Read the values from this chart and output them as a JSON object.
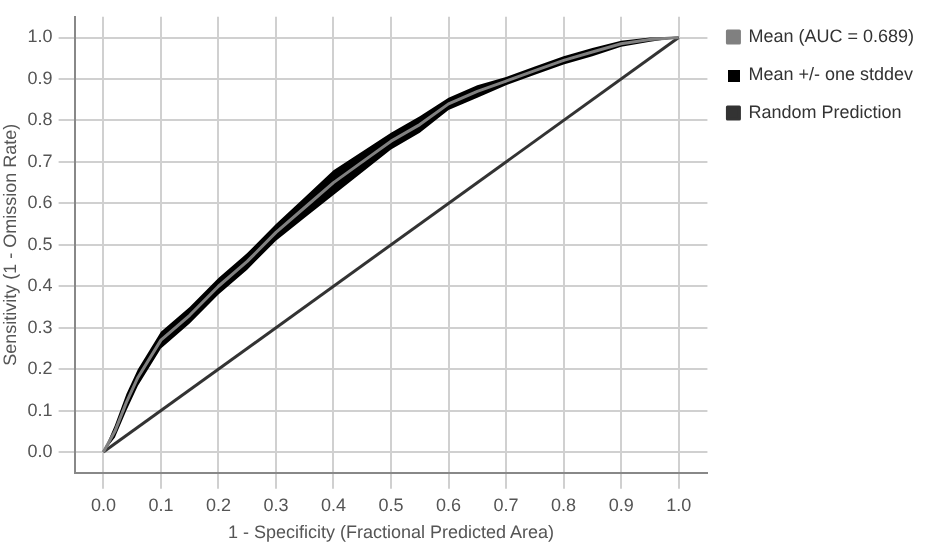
{
  "chart_data": {
    "type": "line",
    "xlabel": "1 - Specificity (Fractional Predicted Area)",
    "ylabel": "Sensitivity (1 - Omission Rate)",
    "x": [
      0,
      0.02,
      0.04,
      0.06,
      0.1,
      0.15,
      0.2,
      0.25,
      0.3,
      0.35,
      0.4,
      0.45,
      0.5,
      0.55,
      0.6,
      0.65,
      0.7,
      0.75,
      0.8,
      0.85,
      0.9,
      0.95,
      1
    ],
    "series": [
      {
        "name": "Mean (AUC = 0.689)",
        "color": "#808080",
        "values": [
          0,
          0.05,
          0.12,
          0.18,
          0.27,
          0.33,
          0.4,
          0.46,
          0.53,
          0.59,
          0.65,
          0.7,
          0.75,
          0.79,
          0.84,
          0.87,
          0.895,
          0.92,
          0.945,
          0.965,
          0.985,
          0.995,
          1
        ],
        "lower": [
          0,
          0.035,
          0.1,
          0.16,
          0.25,
          0.31,
          0.38,
          0.44,
          0.51,
          0.565,
          0.62,
          0.675,
          0.73,
          0.77,
          0.825,
          0.855,
          0.885,
          0.91,
          0.935,
          0.955,
          0.978,
          0.99,
          1
        ],
        "upper": [
          0,
          0.065,
          0.14,
          0.2,
          0.29,
          0.35,
          0.42,
          0.48,
          0.55,
          0.615,
          0.68,
          0.725,
          0.77,
          0.81,
          0.855,
          0.885,
          0.905,
          0.93,
          0.955,
          0.975,
          0.992,
          1,
          1
        ]
      },
      {
        "name": "Random Prediction",
        "color": "#333333",
        "x": [
          0,
          1
        ],
        "values": [
          0,
          1
        ]
      }
    ],
    "annotations": [
      "Mean +/- one stddev"
    ],
    "xlim": [
      -0.05,
      1.05
    ],
    "ylim": [
      -0.05,
      1.05
    ],
    "xticks": [
      {
        "value": 0,
        "label": "0.0"
      },
      0.1,
      0.2,
      0.3,
      0.4,
      0.5,
      0.6,
      0.7,
      0.8,
      0.9,
      {
        "value": 1,
        "label": "1.0"
      }
    ],
    "yticks": [
      {
        "value": 0,
        "label": "0.0"
      },
      0.1,
      0.2,
      0.3,
      0.4,
      0.5,
      0.6,
      0.7,
      0.8,
      0.9,
      {
        "value": 1,
        "label": "1.0"
      }
    ],
    "grid": true,
    "legend": "right",
    "marker": "none",
    "line_style": "solid"
  }
}
